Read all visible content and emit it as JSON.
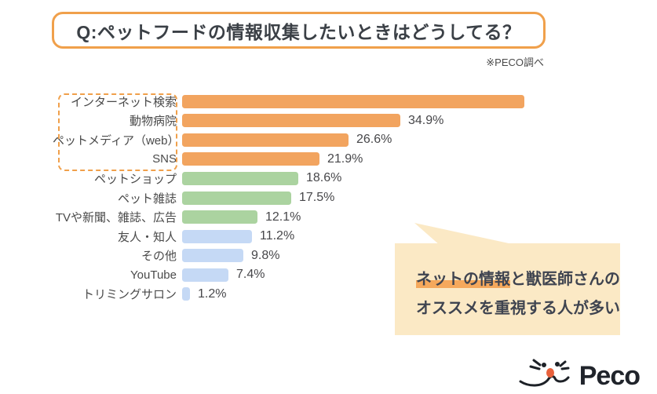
{
  "title": {
    "text": "Q:ペットフードの情報収集したいときはどうしてる？"
  },
  "source_note": "※PECO調べ",
  "chart_data": {
    "type": "bar",
    "orientation": "horizontal",
    "unit": "%",
    "categories": [
      "インターネット検索",
      "動物病院",
      "ペットメディア（web）",
      "SNS",
      "ペットショップ",
      "ペット雑誌",
      "TVや新聞、雑誌、広告",
      "友人・知人",
      "その他",
      "YouTube",
      "トリミングサロン"
    ],
    "values": [
      54.7,
      34.9,
      26.6,
      21.9,
      18.6,
      17.5,
      12.1,
      11.2,
      9.8,
      7.4,
      1.2
    ],
    "value_labels": [
      "",
      "34.9%",
      "26.6%",
      "21.9%",
      "18.6%",
      "17.5%",
      "12.1%",
      "11.2%",
      "9.8%",
      "7.4%",
      "1.2%"
    ],
    "values_note": "first value estimated from bar length; its data label is not shown in the image",
    "groups": [
      "orange",
      "orange",
      "orange",
      "orange",
      "green",
      "green",
      "green",
      "blue",
      "blue",
      "blue",
      "blue"
    ],
    "xlim": [
      0,
      60
    ],
    "grid": false,
    "legend": "none",
    "dashed_outline_note": "top four category labels are enclosed in an orange dashed box"
  },
  "callout": {
    "line1_highlight": "ネットの情報",
    "line1_rest": "と獣医師さんの",
    "line2": "オススメを重視する人が多い"
  },
  "logo": {
    "text": "Peco"
  },
  "colors": {
    "accent_orange": "#F0A04B",
    "bar_orange": "#F2A45F",
    "bar_green": "#ABD3A0",
    "bar_blue": "#C5D9F5",
    "bubble_bg": "#FBE9C5",
    "highlight": "#F5A85C",
    "text_dark": "#45494F",
    "logo_nose": "#E8613C"
  }
}
